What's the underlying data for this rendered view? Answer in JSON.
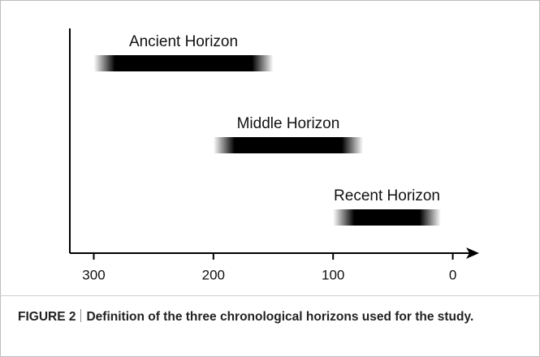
{
  "chart_data": {
    "type": "range",
    "categories": [
      "Ancient Horizon",
      "Middle Horizon",
      "Recent Horizon"
    ],
    "start": [
      300,
      200,
      100
    ],
    "end": [
      150,
      75,
      10
    ],
    "color": "#000000",
    "xlim": [
      320,
      -22
    ],
    "xticks": [
      300,
      200,
      100,
      0
    ]
  },
  "caption": {
    "label": "FIGURE 2",
    "text": "Definition of the three chronological horizons used for the study."
  }
}
